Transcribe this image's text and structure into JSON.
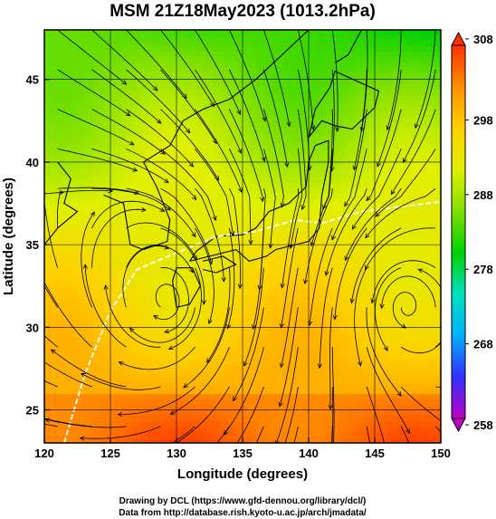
{
  "chart_data": {
    "type": "heatmap",
    "title": "MSM 21Z18May2023 (1013.2hPa)",
    "xlabel": "Longitude (degrees)",
    "ylabel": "Latitude  (degrees)",
    "xlim": [
      120,
      150
    ],
    "ylim": [
      23,
      48
    ],
    "x_ticks": [
      120,
      125,
      130,
      135,
      140,
      145,
      150
    ],
    "y_ticks": [
      25,
      30,
      35,
      40,
      45
    ],
    "x_tick_labels": [
      "120",
      "125",
      "130",
      "135",
      "140",
      "145",
      "150"
    ],
    "y_tick_labels": [
      "25",
      "30",
      "35",
      "40",
      "45"
    ],
    "grid": true,
    "colorbar": {
      "min": 258,
      "max": 308,
      "ticks": [
        258,
        268,
        278,
        288,
        298,
        308
      ],
      "tick_labels": [
        "258",
        "268",
        "278",
        "288",
        "298",
        "308"
      ],
      "colors": [
        "#c000c0",
        "#3030ff",
        "#00b0ff",
        "#00e0c0",
        "#00d000",
        "#80e000",
        "#e0f000",
        "#ffd000",
        "#ff9000",
        "#ff3000"
      ]
    },
    "overlay": "streamlines",
    "white_contour": true
  },
  "credits": {
    "line1": "Drawing by DCL (https://www.gfd-dennou.org/library/dcl/)",
    "line2": "Data from http://database.rish.kyoto-u.ac.jp/arch/jmadata/"
  }
}
